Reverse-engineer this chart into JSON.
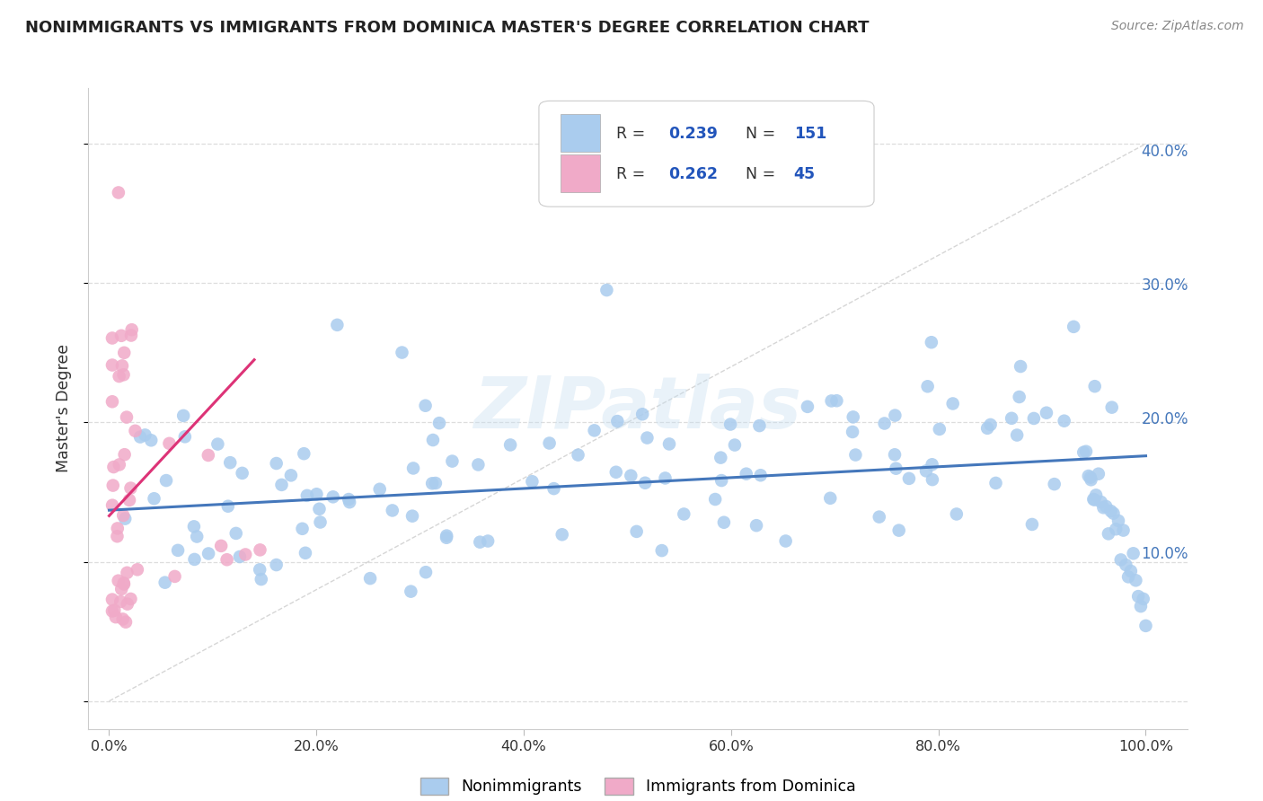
{
  "title": "NONIMMIGRANTS VS IMMIGRANTS FROM DOMINICA MASTER'S DEGREE CORRELATION CHART",
  "source": "Source: ZipAtlas.com",
  "ylabel": "Master's Degree",
  "xlim": [
    -0.02,
    1.04
  ],
  "ylim": [
    -0.02,
    0.44
  ],
  "xticks": [
    0.0,
    0.2,
    0.4,
    0.6,
    0.8,
    1.0
  ],
  "xtick_labels": [
    "0.0%",
    "20.0%",
    "40.0%",
    "60.0%",
    "80.0%",
    "100.0%"
  ],
  "yticks": [
    0.0,
    0.1,
    0.2,
    0.3,
    0.4
  ],
  "ytick_labels": [
    "",
    "10.0%",
    "20.0%",
    "30.0%",
    "40.0%"
  ],
  "blue_R": "0.239",
  "blue_N": "151",
  "pink_R": "0.262",
  "pink_N": "45",
  "nonimmigrant_color": "#aaccee",
  "immigrant_color": "#f0aac8",
  "trend_blue": "#4477bb",
  "trend_pink": "#dd3377",
  "diagonal_color": "#cccccc",
  "background_color": "#ffffff",
  "grid_color": "#dddddd",
  "legend_label_blue": "Nonimmigrants",
  "legend_label_pink": "Immigrants from Dominica",
  "ytick_color": "#4477bb",
  "text_color": "#333333",
  "source_color": "#888888",
  "title_color": "#222222"
}
